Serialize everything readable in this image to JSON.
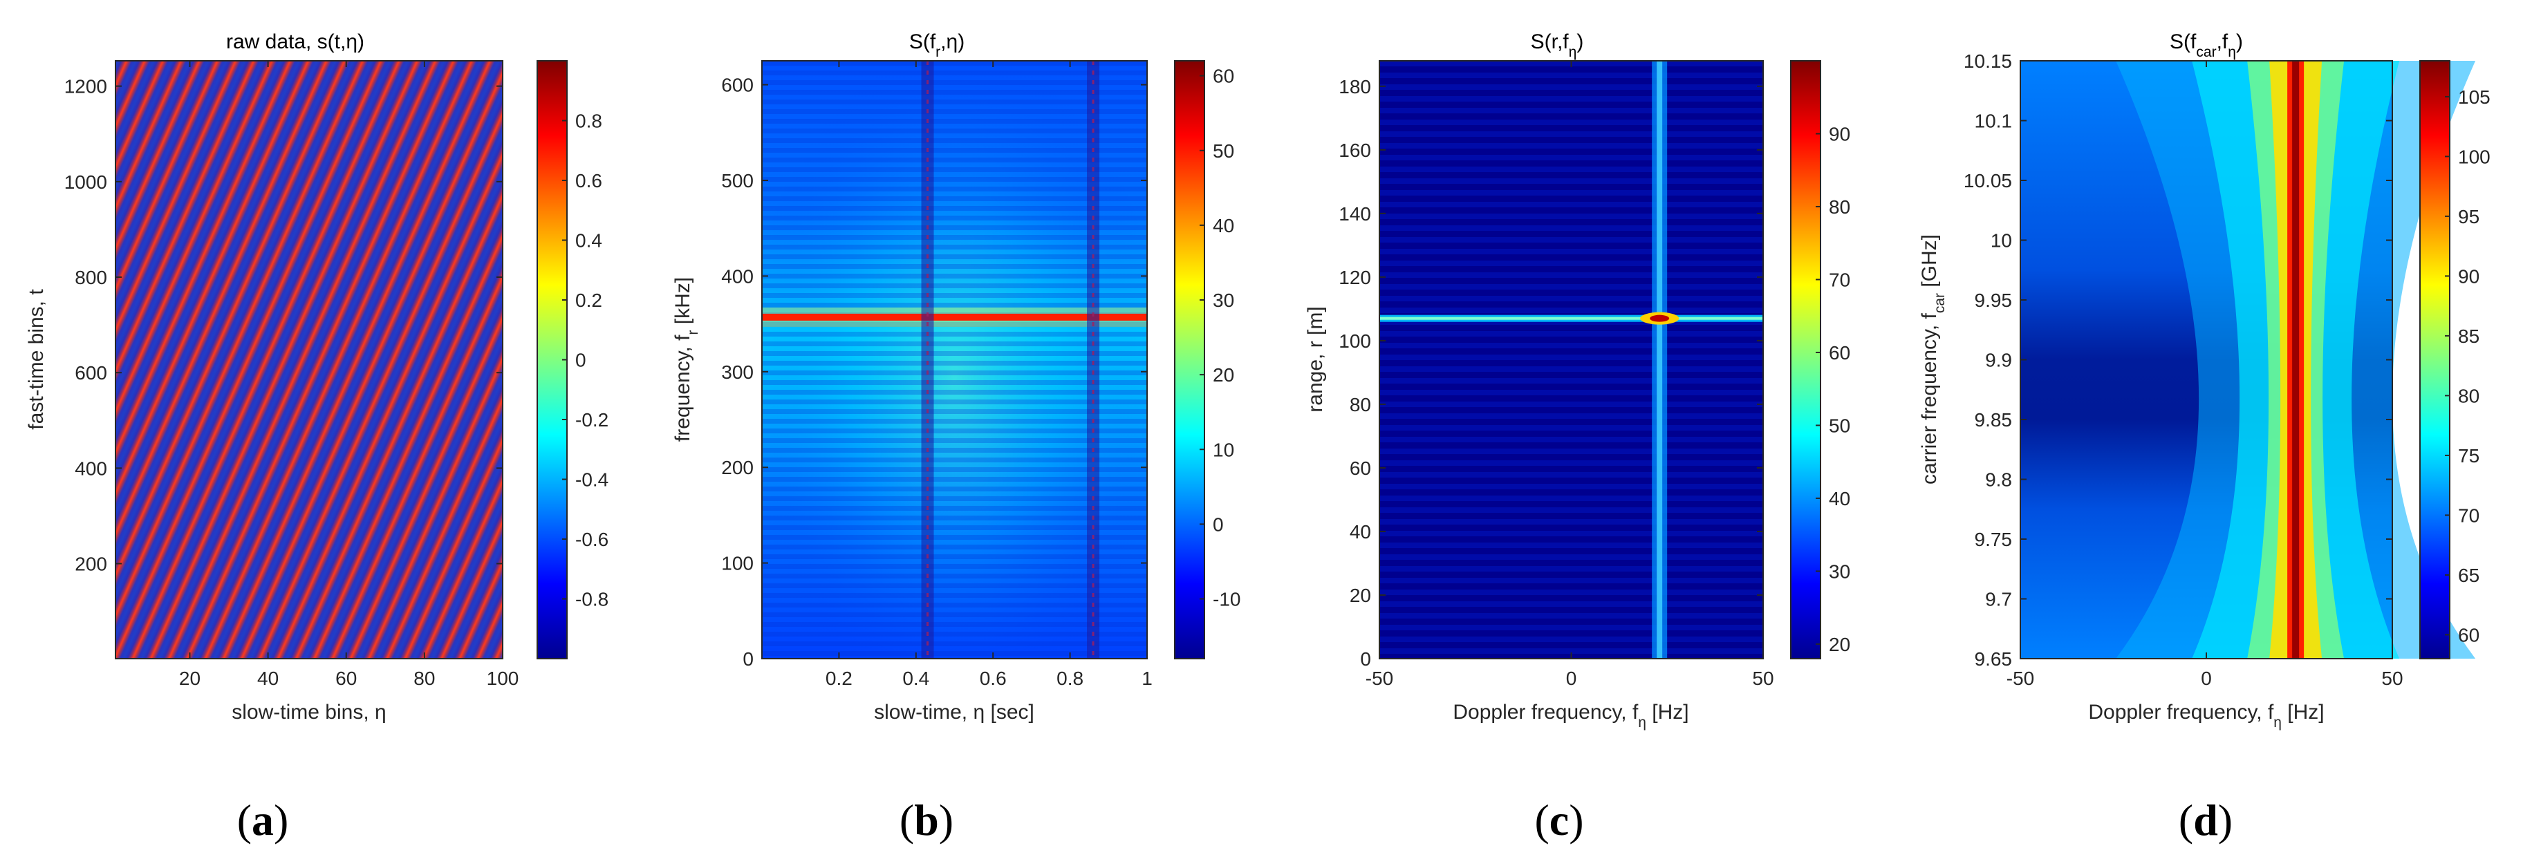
{
  "figure": {
    "colormap": [
      "#00008f",
      "#0000ff",
      "#0080ff",
      "#00ffff",
      "#80ff80",
      "#ffff00",
      "#ff8000",
      "#ff0000",
      "#800000"
    ],
    "frame_color": "#262626"
  },
  "chart_data": [
    {
      "id": "a",
      "type": "heatmap",
      "title": "raw data, s(t,η)",
      "title_parts": {
        "base": "raw data, s(t,",
        "sym": "η",
        "tail": ")"
      },
      "xlabel": "slow-time bins, η",
      "xlabel_parts": {
        "base": "slow-time bins, ",
        "sym": "η",
        "tail": ""
      },
      "ylabel": "fast-time bins, t",
      "xlim": [
        1,
        100
      ],
      "ylim": [
        1,
        1253
      ],
      "xticks": [
        20,
        40,
        60,
        80,
        100
      ],
      "yticks": [
        200,
        400,
        600,
        800,
        1000,
        1200
      ],
      "colorbar": {
        "range": [
          -1,
          1
        ],
        "ticks": [
          -0.8,
          -0.6,
          -0.4,
          -0.2,
          0,
          0.2,
          0.4,
          0.6,
          0.8
        ],
        "tick_labels": [
          "-0.8",
          "-0.6",
          "-0.4",
          "-0.2",
          "0",
          "0.2",
          "0.4",
          "0.6",
          "0.8"
        ]
      },
      "pattern": "diagonal stripes (chirp fringes)",
      "caption": "a"
    },
    {
      "id": "b",
      "type": "heatmap",
      "title": "S(fr,η)",
      "title_parts": {
        "base": "S(f",
        "sub": "r",
        "mid": ",",
        "sym": "η",
        "tail": ")"
      },
      "xlabel": "slow-time, η [sec]",
      "xlabel_parts": {
        "base": "slow-time, ",
        "sym": "η",
        "tail": " [sec]"
      },
      "ylabel": "frequency, fr [kHz]",
      "ylabel_parts": {
        "base": "frequency, f",
        "sub": "r",
        "tail": " [kHz]"
      },
      "xlim": [
        0,
        1
      ],
      "ylim": [
        0,
        625
      ],
      "xticks": [
        0.2,
        0.4,
        0.6,
        0.8,
        1
      ],
      "xtick_labels": [
        "0.2",
        "0.4",
        "0.6",
        "0.8",
        "1"
      ],
      "yticks": [
        0,
        100,
        200,
        300,
        400,
        500,
        600
      ],
      "colorbar": {
        "range": [
          -18,
          62
        ],
        "ticks": [
          -10,
          0,
          10,
          20,
          30,
          40,
          50,
          60
        ],
        "tick_labels": [
          "-10",
          "0",
          "10",
          "20",
          "30",
          "40",
          "50",
          "60"
        ]
      },
      "features": {
        "peak_frequency_khz": 357,
        "dark_columns_sec": [
          0.43,
          0.86
        ]
      },
      "caption": "b"
    },
    {
      "id": "c",
      "type": "heatmap",
      "title": "S(r,fη)",
      "title_parts": {
        "base": "S(r,f",
        "sub": "η",
        "tail": ")"
      },
      "xlabel": "Doppler frequency, fη [Hz]",
      "xlabel_parts": {
        "base": "Doppler frequency, f",
        "sub": "η",
        "tail": " [Hz]"
      },
      "ylabel": "range, r [m]",
      "xlim": [
        -50,
        50
      ],
      "ylim": [
        0,
        188
      ],
      "xticks": [
        -50,
        0,
        50
      ],
      "yticks": [
        0,
        20,
        40,
        60,
        80,
        100,
        120,
        140,
        160,
        180
      ],
      "colorbar": {
        "range": [
          18,
          100
        ],
        "ticks": [
          20,
          30,
          40,
          50,
          60,
          70,
          80,
          90
        ],
        "tick_labels": [
          "20",
          "30",
          "40",
          "50",
          "60",
          "70",
          "80",
          "90"
        ]
      },
      "features": {
        "peak": {
          "range_m": 107,
          "doppler_hz": 23
        }
      },
      "caption": "c"
    },
    {
      "id": "d",
      "type": "heatmap",
      "title": "S(fcar,fη)",
      "title_parts": {
        "base": "S(f",
        "sub": "car",
        "mid": ",f",
        "sub2": "η",
        "tail": ")"
      },
      "xlabel": "Doppler frequency, fη [Hz]",
      "xlabel_parts": {
        "base": "Doppler frequency, f",
        "sub": "η",
        "tail": " [Hz]"
      },
      "ylabel": "carrier frequency, fcar [GHz]",
      "ylabel_parts": {
        "base": "carrier frequency, f",
        "sub": "car",
        "tail": " [GHz]"
      },
      "xlim": [
        -50,
        50
      ],
      "ylim": [
        9.65,
        10.15
      ],
      "xticks": [
        -50,
        0,
        50
      ],
      "yticks": [
        9.7,
        9.75,
        9.8,
        9.85,
        9.9,
        9.95,
        10,
        10.05,
        10.1,
        10.15
      ],
      "ytick_labels": [
        "9.7",
        "9.75",
        "9.8",
        "9.85",
        "9.9",
        "9.95",
        "10",
        "10.05",
        "10.1",
        "10.15"
      ],
      "ytick_bottom": {
        "value": 9.65,
        "label": "9.65"
      },
      "colorbar": {
        "range": [
          58,
          108
        ],
        "ticks": [
          60,
          65,
          70,
          75,
          80,
          85,
          90,
          95,
          100,
          105
        ],
        "tick_labels": [
          "60",
          "65",
          "70",
          "75",
          "80",
          "85",
          "90",
          "95",
          "100",
          "105"
        ]
      },
      "features": {
        "ridge_doppler_hz": 24,
        "waist_ghz": 9.835
      },
      "caption": "d"
    }
  ]
}
